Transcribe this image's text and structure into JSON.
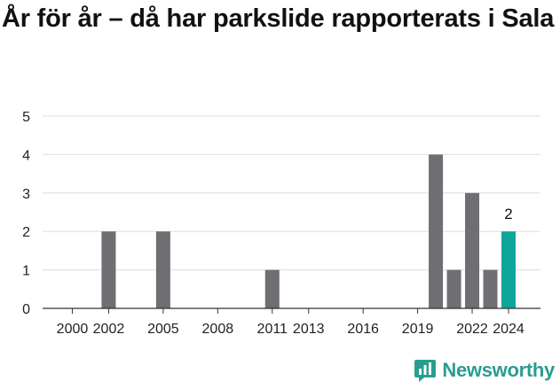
{
  "title": "År för år – då har parkslide rapporterats i Sala",
  "brand": {
    "name": "Newsworthy",
    "logo_icon": "newsworthy-bar-chart-icon"
  },
  "colors": {
    "bar": "#6e6e73",
    "highlight": "#0ea59b",
    "grid": "#dddddd",
    "brand": "#2a9d8f"
  },
  "chart_data": {
    "type": "bar",
    "title": "År för år – då har parkslide rapporterats i Sala",
    "xlabel": "",
    "ylabel": "",
    "ylim": [
      0,
      5
    ],
    "yticks": [
      0,
      1,
      2,
      3,
      4,
      5
    ],
    "grid": true,
    "x": [
      1999,
      2000,
      2001,
      2002,
      2003,
      2004,
      2005,
      2006,
      2007,
      2008,
      2009,
      2010,
      2011,
      2012,
      2013,
      2014,
      2015,
      2016,
      2017,
      2018,
      2019,
      2020,
      2021,
      2022,
      2023,
      2024
    ],
    "values": [
      0,
      0,
      0,
      2,
      0,
      0,
      2,
      0,
      0,
      0,
      0,
      0,
      1,
      0,
      0,
      0,
      0,
      0,
      0,
      0,
      0,
      4,
      1,
      3,
      1,
      2
    ],
    "xtick_labels": [
      2000,
      2002,
      2005,
      2008,
      2011,
      2013,
      2016,
      2019,
      2022,
      2024
    ],
    "highlight": {
      "x": 2024,
      "label": "2"
    }
  }
}
